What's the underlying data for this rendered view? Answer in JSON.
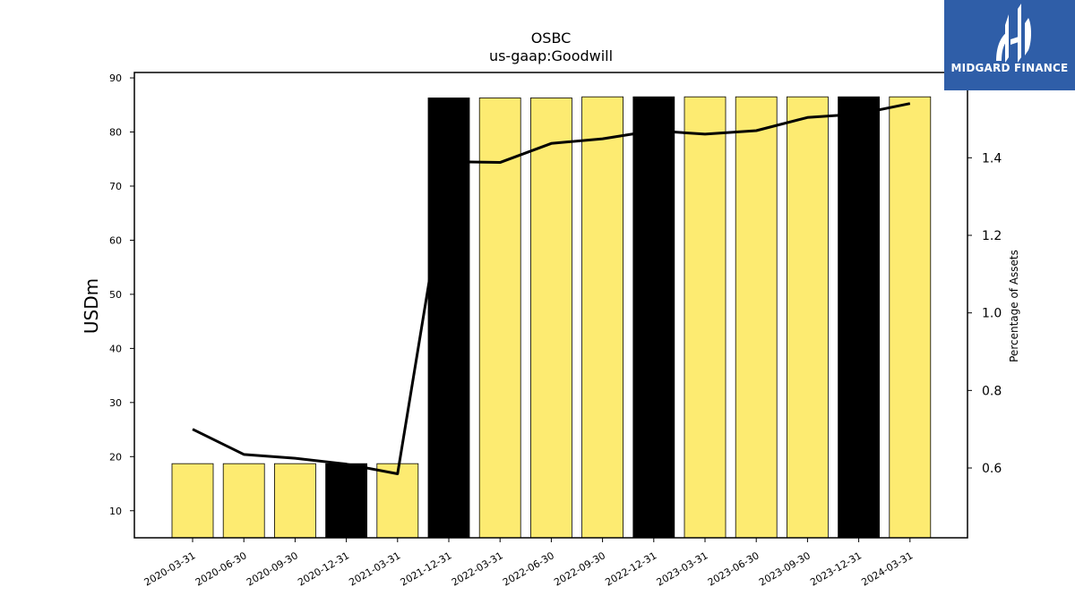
{
  "brand": {
    "name": "MIDGARD FINANCE",
    "bg_color": "#2f5ea8",
    "icon": "midgard-logo-icon"
  },
  "chart_data": {
    "type": "bar",
    "title": "OSBC",
    "subtitle": "us-gaap:Goodwill",
    "ylabel": "USDm",
    "y2label": "Percentage of Assets",
    "ylim": [
      5,
      91
    ],
    "y2lim": [
      0.42,
      1.62
    ],
    "yticks": [
      10,
      20,
      30,
      40,
      50,
      60,
      70,
      80,
      90
    ],
    "y2ticks": [
      0.6,
      0.8,
      1.0,
      1.2,
      1.4
    ],
    "categories": [
      "2020-03-31",
      "2020-06-30",
      "2020-09-30",
      "2020-12-31",
      "2021-03-31",
      "2021-12-31",
      "2022-03-31",
      "2022-06-30",
      "2022-09-30",
      "2022-12-31",
      "2023-03-31",
      "2023-06-30",
      "2023-09-30",
      "2023-12-31",
      "2024-03-31"
    ],
    "series": [
      {
        "kind": "bar",
        "values": [
          18.7,
          18.7,
          18.7,
          18.7,
          18.7,
          86.3,
          86.3,
          86.3,
          86.5,
          86.5,
          86.5,
          86.5,
          86.5,
          86.5,
          86.5
        ],
        "colors": [
          "#fdeb71",
          "#fdeb71",
          "#fdeb71",
          "#000000",
          "#fdeb71",
          "#000000",
          "#fdeb71",
          "#fdeb71",
          "#fdeb71",
          "#000000",
          "#fdeb71",
          "#fdeb71",
          "#fdeb71",
          "#000000",
          "#fdeb71"
        ]
      },
      {
        "kind": "line",
        "axis": "right",
        "color": "#000000",
        "values": [
          0.7,
          0.635,
          0.625,
          0.61,
          0.585,
          1.39,
          1.388,
          1.437,
          1.449,
          1.47,
          1.461,
          1.47,
          1.504,
          1.513,
          1.54
        ]
      }
    ],
    "colors": {
      "bar": "#fdeb71",
      "bar_alt": "#000000",
      "line": "#000000"
    },
    "grid": false,
    "legend": "none"
  }
}
